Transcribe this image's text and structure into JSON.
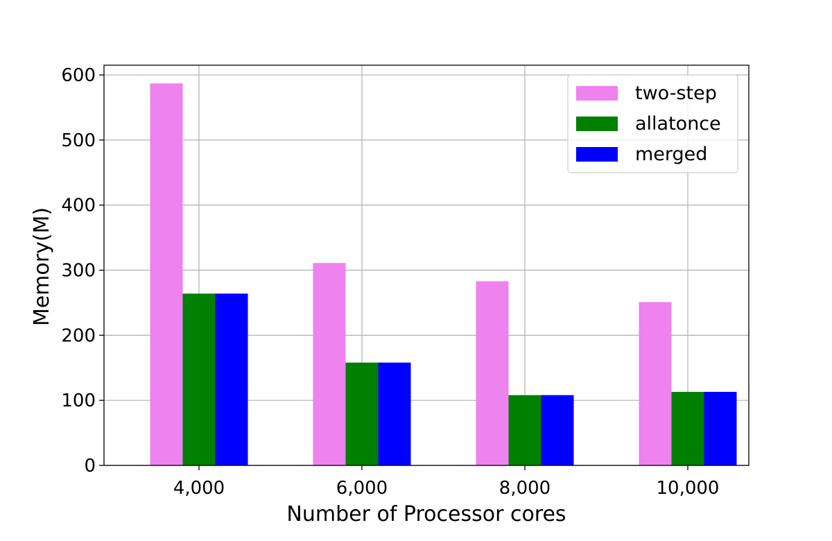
{
  "chart_data": {
    "type": "bar",
    "title": "",
    "xlabel": "Number of Processor cores",
    "ylabel": "Memory(M)",
    "categories": [
      "4,000",
      "6,000",
      "8,000",
      "10,000"
    ],
    "ylim": [
      0,
      615
    ],
    "yticks": [
      0,
      100,
      200,
      300,
      400,
      500,
      600
    ],
    "grid": true,
    "legend_position": "top-right",
    "series": [
      {
        "name": "two-step",
        "color": "#ee82ee",
        "values": [
          587,
          311,
          283,
          251
        ]
      },
      {
        "name": "allatonce",
        "color": "#008000",
        "values": [
          264,
          158,
          108,
          113
        ]
      },
      {
        "name": "merged",
        "color": "#0000ff",
        "values": [
          264,
          158,
          108,
          113
        ]
      }
    ]
  }
}
